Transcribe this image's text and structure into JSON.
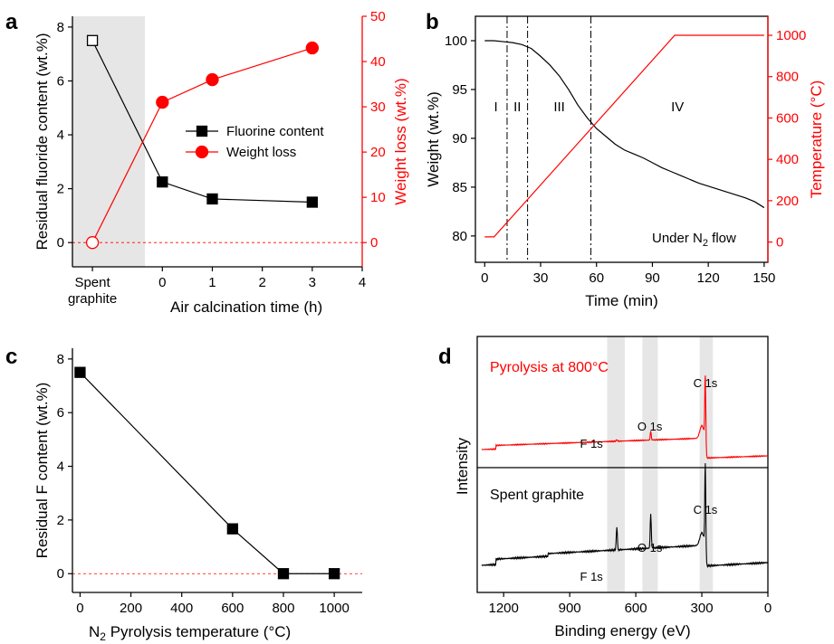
{
  "panels": {
    "a": {
      "letter": "a"
    },
    "b": {
      "letter": "b"
    },
    "c": {
      "letter": "c"
    },
    "d": {
      "letter": "d"
    }
  },
  "colors": {
    "black": "#000000",
    "red": "#ff0000",
    "shade": "#e6e6e6"
  },
  "chart_data": [
    {
      "panel": "a",
      "type": "line",
      "xlabel": "Air calcination time (h)",
      "ylabel": "Residual fluoride content (wt.%)",
      "y2label": "Weight loss (wt.%)",
      "category_label": [
        "Spent",
        "graphite"
      ],
      "xticks": [
        "0",
        "1",
        "2",
        "3",
        "4"
      ],
      "yticks": [
        "0",
        "2",
        "4",
        "6",
        "8"
      ],
      "y2ticks": [
        "0",
        "10",
        "20",
        "30",
        "40",
        "50"
      ],
      "xlim": [
        -1.8,
        4
      ],
      "ylim": [
        -0.9,
        8.4
      ],
      "y2lim": [
        -5.357,
        50
      ],
      "legend_position": "center-right",
      "series": [
        {
          "name": "Fluorine content",
          "color": "#000000",
          "marker": "square",
          "axis": "left",
          "spent_graphite": 7.5,
          "x": [
            0,
            1,
            3
          ],
          "y": [
            2.25,
            1.62,
            1.5
          ]
        },
        {
          "name": "Weight loss",
          "color": "#ff0000",
          "marker": "circle",
          "axis": "right",
          "spent_graphite": 0,
          "x": [
            0,
            1,
            3
          ],
          "y": [
            31,
            36,
            43
          ]
        }
      ]
    },
    {
      "panel": "b",
      "type": "line",
      "xlabel": "Time (min)",
      "ylabel": "Weight (wt.%)",
      "y2label": "Temperature (°C)",
      "xticks": [
        "0",
        "30",
        "60",
        "90",
        "120",
        "150"
      ],
      "yticks": [
        "80",
        "85",
        "90",
        "95",
        "100"
      ],
      "y2ticks": [
        "0",
        "200",
        "400",
        "600",
        "800",
        "1000"
      ],
      "xlim": [
        -5,
        152
      ],
      "ylim": [
        77.3,
        102.5
      ],
      "y2lim": [
        -98,
        1092
      ],
      "stage_boundaries": [
        12,
        23,
        57
      ],
      "stages": [
        "I",
        "II",
        "III",
        "IV"
      ],
      "annotation": {
        "text": "Under N",
        "sub": "2",
        "tail": " flow"
      },
      "series": [
        {
          "name": "Weight",
          "color": "#000000",
          "x": [
            0,
            5,
            10,
            15,
            20,
            25,
            30,
            35,
            40,
            45,
            50,
            55,
            60,
            65,
            70,
            75,
            80,
            85,
            90,
            95,
            100,
            105,
            110,
            115,
            120,
            125,
            130,
            135,
            140,
            145,
            150
          ],
          "y": [
            100,
            100,
            99.9,
            99.8,
            99.6,
            99.2,
            98.4,
            97.5,
            96.4,
            95.0,
            93.4,
            92.1,
            91.0,
            90.2,
            89.4,
            88.8,
            88.4,
            88.0,
            87.5,
            87.0,
            86.6,
            86.2,
            85.8,
            85.4,
            85.1,
            84.8,
            84.5,
            84.2,
            83.9,
            83.5,
            82.9
          ]
        },
        {
          "name": "Temperature",
          "color": "#ff0000",
          "x": [
            0,
            5,
            102,
            150
          ],
          "y": [
            25,
            25,
            1000,
            1000
          ]
        }
      ]
    },
    {
      "panel": "c",
      "type": "line",
      "xlabel_prefix": "N",
      "xlabel_sub": "2",
      "xlabel_rest": " Pyrolysis temperature  (°C)",
      "ylabel": "Residual F content (wt.%)",
      "xticks": [
        "0",
        "200",
        "400",
        "600",
        "800",
        "1000"
      ],
      "yticks": [
        "0",
        "2",
        "4",
        "6",
        "8"
      ],
      "xlim": [
        -30,
        1110
      ],
      "ylim": [
        -0.7,
        8.4
      ],
      "series": [
        {
          "name": "Residual F content",
          "color": "#000000",
          "marker": "square",
          "x": [
            0,
            600,
            800,
            1000
          ],
          "y": [
            7.5,
            1.67,
            0.0,
            0.0
          ]
        }
      ]
    },
    {
      "panel": "d",
      "type": "line",
      "xlabel": "Binding energy (eV)",
      "ylabel": "Intensity",
      "xticks": [
        "1200",
        "900",
        "600",
        "300",
        "0"
      ],
      "xlim": [
        1320,
        0
      ],
      "shaded_ranges": [
        [
          730,
          650
        ],
        [
          570,
          500
        ],
        [
          310,
          250
        ]
      ],
      "series": [
        {
          "name": "Pyrolysis at 800°C",
          "color": "#ff0000",
          "peaks": [
            {
              "label": "F 1s",
              "energy": 686
            },
            {
              "label": "O 1s",
              "energy": 532
            },
            {
              "label": "C 1s",
              "energy": 284
            }
          ]
        },
        {
          "name": "Spent graphite",
          "color": "#000000",
          "peaks": [
            {
              "label": "F 1s",
              "energy": 686
            },
            {
              "label": "O 1s",
              "energy": 532
            },
            {
              "label": "C 1s",
              "energy": 284
            }
          ]
        }
      ]
    }
  ]
}
